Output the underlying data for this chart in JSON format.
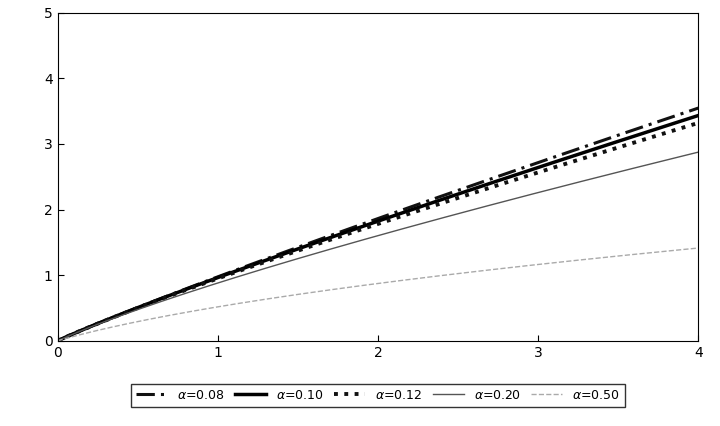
{
  "xlim": [
    0,
    4
  ],
  "ylim": [
    0,
    5
  ],
  "yticks": [
    0,
    1,
    2,
    3,
    4,
    5
  ],
  "xticks": [
    0,
    1,
    2,
    3,
    4
  ],
  "curves": [
    {
      "alpha": 0.08,
      "label": "α=0.08",
      "linestyle": "dashed",
      "linewidth": 2.2,
      "color": "#111111"
    },
    {
      "alpha": 0.1,
      "label": "α=0.10",
      "linestyle": "solid",
      "linewidth": 2.5,
      "color": "#000000"
    },
    {
      "alpha": 0.12,
      "label": "α=0.12",
      "linestyle": "dotted",
      "linewidth": 2.8,
      "color": "#111111"
    },
    {
      "alpha": 0.2,
      "label": "α=0.20",
      "linestyle": "solid",
      "linewidth": 1.0,
      "color": "#555555"
    },
    {
      "alpha": 0.5,
      "label": "α=0.50",
      "linestyle": "dashed",
      "linewidth": 1.0,
      "color": "#aaaaaa"
    }
  ],
  "background_color": "#ffffff",
  "figsize": [
    7.2,
    4.26
  ],
  "dpi": 100,
  "tick_fontsize": 10,
  "legend_fontsize": 9
}
